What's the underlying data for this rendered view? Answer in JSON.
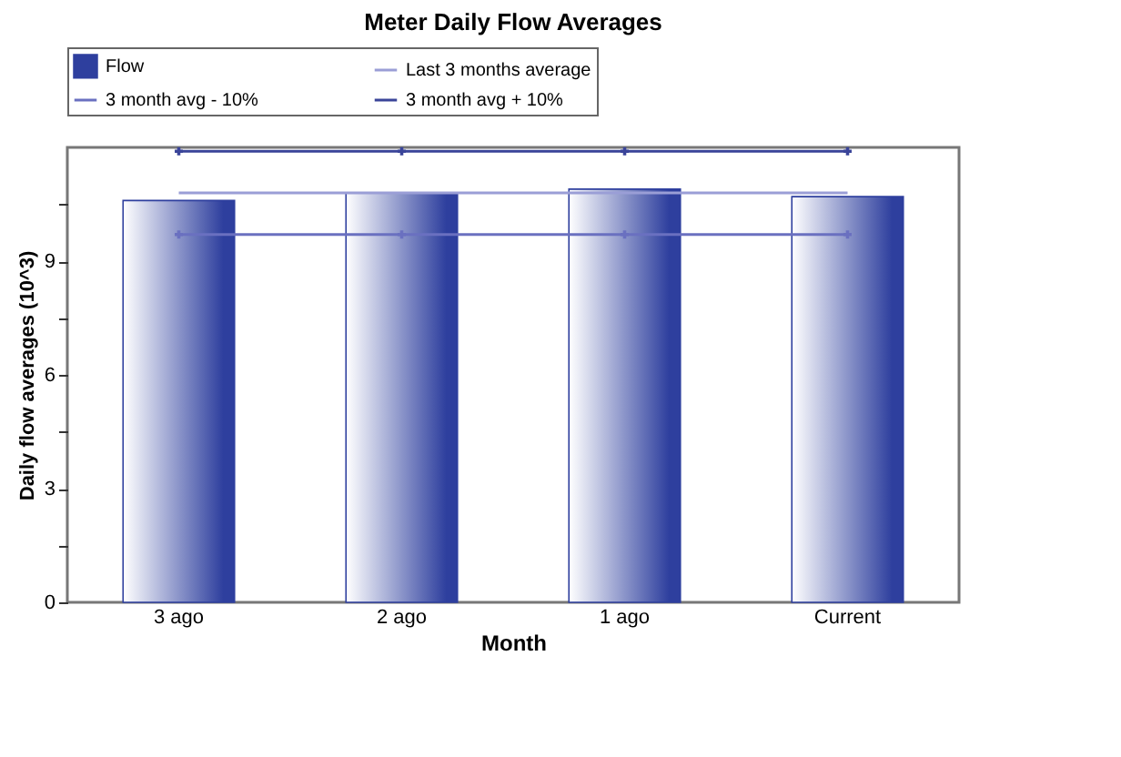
{
  "chart_data": {
    "type": "bar",
    "title": "Meter Daily Flow Averages",
    "xlabel": "Month",
    "ylabel": "Daily flow averages (10^3)",
    "categories": [
      "3 ago",
      "2 ago",
      "1 ago",
      "Current"
    ],
    "series": [
      {
        "name": "Flow",
        "color": "#2e3f9e",
        "values": [
          10.6,
          10.8,
          10.9,
          10.7
        ]
      },
      {
        "name": "Last 3 months average",
        "type": "line",
        "color": "#9a9ed6",
        "marker": "none",
        "values": [
          10.8,
          10.8,
          10.8,
          10.8
        ]
      },
      {
        "name": "3 month avg - 10%",
        "type": "line",
        "color": "#6a70c0",
        "marker": "cross",
        "values": [
          9.7,
          9.7,
          9.7,
          9.7
        ]
      },
      {
        "name": "3 month avg + 10%",
        "type": "line",
        "color": "#3a4499",
        "marker": "cross",
        "values": [
          11.9,
          11.9,
          11.9,
          11.9
        ]
      }
    ],
    "ylim": [
      0,
      12
    ],
    "yticks": [
      0,
      {
        "value": 1.5,
        "label": null
      },
      3,
      {
        "value": 4.5,
        "label": null
      },
      6,
      {
        "value": 7.5,
        "label": null
      },
      9,
      {
        "value": 10.5,
        "label": null
      }
    ],
    "grid": false,
    "legend": "top left"
  }
}
